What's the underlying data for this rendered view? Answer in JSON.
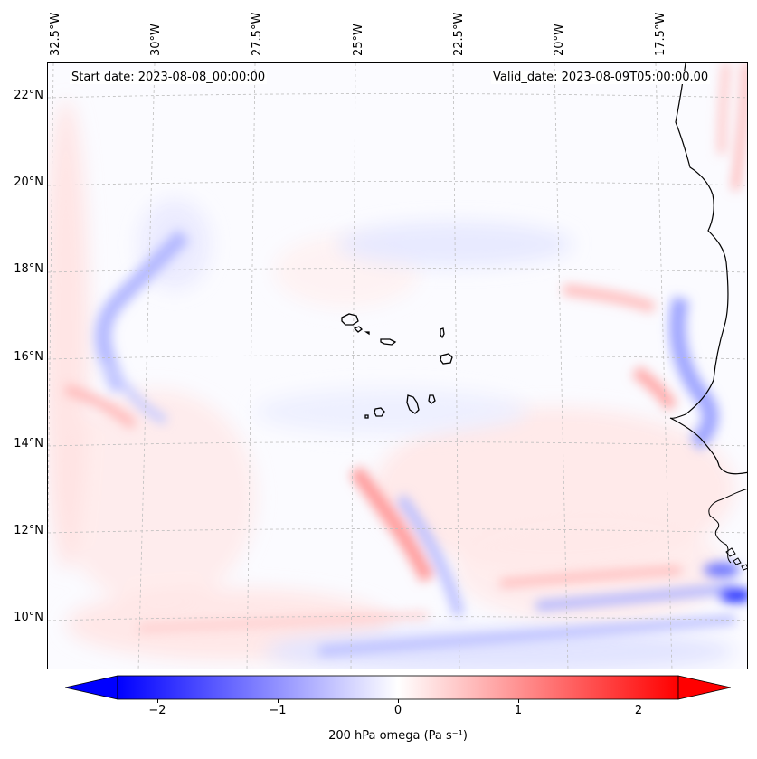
{
  "map": {
    "header_left": "Start date: 2023-08-08_00:00:00",
    "header_right": "Valid_date: 2023-08-09T05:00:00.00",
    "lon_labels": [
      "32.5°W",
      "30°W",
      "27.5°W",
      "25°W",
      "22.5°W",
      "20°W",
      "17.5°W"
    ],
    "lat_labels": [
      "22°N",
      "20°N",
      "18°N",
      "16°N",
      "14°N",
      "12°N",
      "10°N"
    ],
    "colors": {
      "negative": "#0000ff",
      "zero": "#ffffff",
      "positive": "#ff0000",
      "coastline": "#000000",
      "grid": "#bbbbbb"
    }
  },
  "colorbar": {
    "label": "200 hPa omega (Pa s⁻¹)",
    "range": [
      -2.6,
      2.6
    ],
    "ticks": [
      "−2",
      "−1",
      "0",
      "1",
      "2"
    ],
    "tick_values": [
      -2,
      -1,
      0,
      1,
      2
    ]
  }
}
